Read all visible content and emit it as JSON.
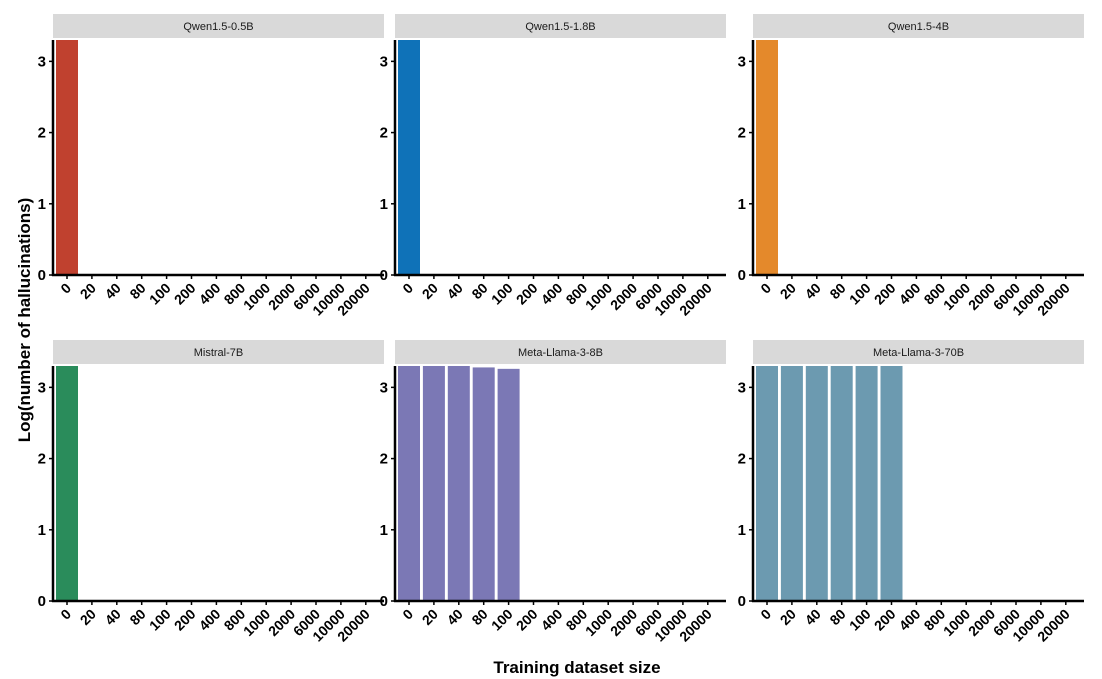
{
  "chart_data": {
    "type": "bar",
    "layout": "facet-grid-2x3",
    "xlabel": "Training dataset size",
    "ylabel": "Log(number of hallucinations)",
    "ylim": [
      0,
      3.3
    ],
    "yticks": [
      0,
      1,
      2,
      3
    ],
    "categories": [
      "0",
      "20",
      "40",
      "80",
      "100",
      "200",
      "400",
      "800",
      "1000",
      "2000",
      "6000",
      "10000",
      "20000"
    ],
    "grid": false,
    "legend": "none",
    "facets": [
      {
        "name": "Qwen1.5-0.5B",
        "color": "#C0412F",
        "values": [
          3.3,
          0,
          0,
          0,
          0,
          0,
          0,
          0,
          0,
          0,
          0,
          0,
          0
        ]
      },
      {
        "name": "Qwen1.5-1.8B",
        "color": "#0F72B8",
        "values": [
          3.3,
          0,
          0,
          0,
          0,
          0,
          0,
          0,
          0,
          0,
          0,
          0,
          0
        ]
      },
      {
        "name": "Qwen1.5-4B",
        "color": "#E4892B",
        "values": [
          3.3,
          0,
          0,
          0,
          0,
          0,
          0,
          0,
          0,
          0,
          0,
          0,
          0
        ]
      },
      {
        "name": "Mistral-7B",
        "color": "#2A8C5B",
        "values": [
          3.3,
          0,
          0,
          0,
          0,
          0,
          0,
          0,
          0,
          0,
          0,
          0,
          0
        ]
      },
      {
        "name": "Meta-Llama-3-8B",
        "color": "#7B78B5",
        "values": [
          3.3,
          3.3,
          3.3,
          3.28,
          3.26,
          0,
          0,
          0,
          0,
          0,
          0,
          0,
          0
        ]
      },
      {
        "name": "Meta-Llama-3-70B",
        "color": "#6C9AB0",
        "values": [
          3.3,
          3.3,
          3.3,
          3.3,
          3.3,
          3.3,
          0,
          0,
          0,
          0,
          0,
          0,
          0
        ]
      }
    ]
  }
}
